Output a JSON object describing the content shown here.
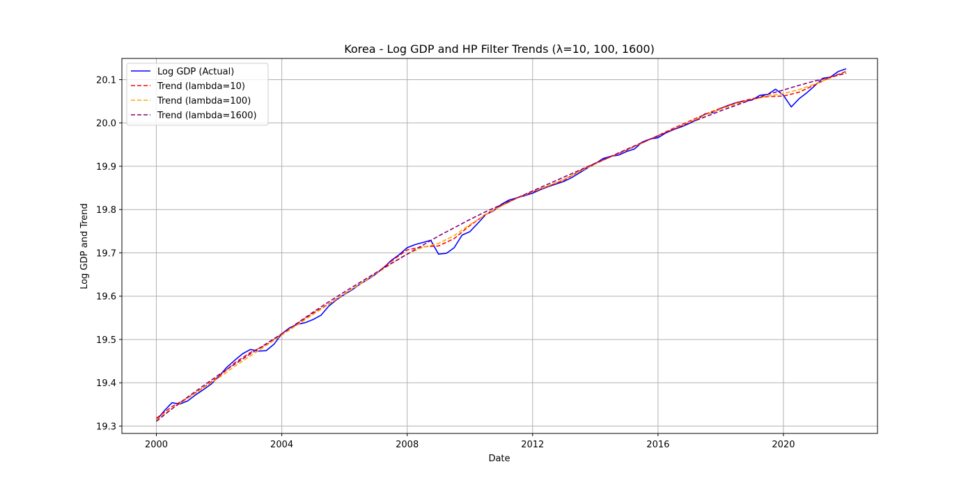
{
  "chart_data": {
    "type": "line",
    "title": "Korea - Log GDP and HP Filter Trends (λ=10, 100, 1600)",
    "xlabel": "Date",
    "ylabel": "Log GDP and Trend",
    "xlim": [
      1998.9,
      2023.0
    ],
    "ylim": [
      19.283,
      20.149
    ],
    "grid": true,
    "legend_position": "top-left",
    "x_ticks": [
      2000,
      2004,
      2008,
      2012,
      2016,
      2020
    ],
    "x_tick_labels": [
      "2000",
      "2004",
      "2008",
      "2012",
      "2016",
      "2020"
    ],
    "y_ticks": [
      19.3,
      19.4,
      19.5,
      19.6,
      19.7,
      19.8,
      19.9,
      20.0,
      20.1
    ],
    "y_tick_labels": [
      "19.3",
      "19.4",
      "19.5",
      "19.6",
      "19.7",
      "19.8",
      "19.9",
      "20.0",
      "20.1"
    ],
    "series": [
      {
        "name": "Log GDP (Actual)",
        "color": "#0000ff",
        "style": "solid",
        "x": [
          2000.0,
          2000.25,
          2000.5,
          2000.75,
          2001.0,
          2001.25,
          2001.5,
          2001.75,
          2002.0,
          2002.25,
          2002.5,
          2002.75,
          2003.0,
          2003.25,
          2003.5,
          2003.75,
          2004.0,
          2004.25,
          2004.5,
          2004.75,
          2005.0,
          2005.25,
          2005.5,
          2005.75,
          2006.0,
          2006.25,
          2006.5,
          2006.75,
          2007.0,
          2007.25,
          2007.5,
          2007.75,
          2008.0,
          2008.25,
          2008.5,
          2008.75,
          2009.0,
          2009.25,
          2009.5,
          2009.75,
          2010.0,
          2010.25,
          2010.5,
          2010.75,
          2011.0,
          2011.25,
          2011.5,
          2011.75,
          2012.0,
          2012.25,
          2012.5,
          2012.75,
          2013.0,
          2013.25,
          2013.5,
          2013.75,
          2014.0,
          2014.25,
          2014.5,
          2014.75,
          2015.0,
          2015.25,
          2015.5,
          2015.75,
          2016.0,
          2016.25,
          2016.5,
          2016.75,
          2017.0,
          2017.25,
          2017.5,
          2017.75,
          2018.0,
          2018.25,
          2018.5,
          2018.75,
          2019.0,
          2019.25,
          2019.5,
          2019.75,
          2020.0,
          2020.25,
          2020.5,
          2020.75,
          2021.0,
          2021.25,
          2021.5,
          2021.75,
          2022.0
        ],
        "values": [
          19.313,
          19.335,
          19.354,
          19.351,
          19.358,
          19.372,
          19.384,
          19.397,
          19.415,
          19.436,
          19.452,
          19.467,
          19.477,
          19.473,
          19.474,
          19.489,
          19.513,
          19.527,
          19.535,
          19.539,
          19.546,
          19.556,
          19.577,
          19.592,
          19.604,
          19.615,
          19.628,
          19.639,
          19.651,
          19.666,
          19.683,
          19.696,
          19.712,
          19.719,
          19.724,
          19.729,
          19.697,
          19.699,
          19.712,
          19.741,
          19.749,
          19.768,
          19.788,
          19.797,
          19.812,
          19.822,
          19.827,
          19.832,
          19.838,
          19.846,
          19.853,
          19.859,
          19.865,
          19.874,
          19.885,
          19.896,
          19.906,
          19.918,
          19.923,
          19.926,
          19.934,
          19.94,
          19.956,
          19.963,
          19.966,
          19.977,
          19.985,
          19.991,
          19.999,
          20.008,
          20.021,
          20.024,
          20.034,
          20.041,
          20.047,
          20.05,
          20.053,
          20.064,
          20.066,
          20.078,
          20.064,
          20.037,
          20.056,
          20.07,
          20.086,
          20.103,
          20.106,
          20.119,
          20.125
        ]
      },
      {
        "name": "Trend (lambda=10)",
        "color": "#ff0000",
        "style": "dashed",
        "x": [
          2000.0,
          2000.5,
          2001.0,
          2001.5,
          2002.0,
          2002.5,
          2003.0,
          2003.5,
          2004.0,
          2004.5,
          2005.0,
          2005.5,
          2006.0,
          2006.5,
          2007.0,
          2007.5,
          2008.0,
          2008.5,
          2009.0,
          2009.5,
          2010.0,
          2010.5,
          2011.0,
          2011.5,
          2012.0,
          2012.5,
          2013.0,
          2013.5,
          2014.0,
          2014.5,
          2015.0,
          2015.5,
          2016.0,
          2016.5,
          2017.0,
          2017.5,
          2018.0,
          2018.5,
          2019.0,
          2019.5,
          2020.0,
          2020.5,
          2021.0,
          2021.5,
          2022.0
        ],
        "values": [
          19.318,
          19.345,
          19.365,
          19.389,
          19.415,
          19.446,
          19.47,
          19.487,
          19.513,
          19.537,
          19.561,
          19.582,
          19.606,
          19.628,
          19.652,
          19.681,
          19.707,
          19.714,
          19.716,
          19.733,
          19.763,
          19.789,
          19.809,
          19.827,
          19.841,
          19.854,
          19.868,
          19.889,
          19.907,
          19.922,
          19.937,
          19.954,
          19.971,
          19.988,
          20.004,
          20.02,
          20.034,
          20.047,
          20.056,
          20.061,
          20.062,
          20.071,
          20.088,
          20.106,
          20.119
        ]
      },
      {
        "name": "Trend (lambda=100)",
        "color": "#ffa500",
        "style": "dashed",
        "x": [
          2000.0,
          2000.5,
          2001.0,
          2001.5,
          2002.0,
          2002.5,
          2003.0,
          2003.5,
          2004.0,
          2004.5,
          2005.0,
          2005.5,
          2006.0,
          2006.5,
          2007.0,
          2007.5,
          2008.0,
          2008.5,
          2009.0,
          2009.5,
          2010.0,
          2010.5,
          2011.0,
          2011.5,
          2012.0,
          2012.5,
          2013.0,
          2013.5,
          2014.0,
          2014.5,
          2015.0,
          2015.5,
          2016.0,
          2016.5,
          2017.0,
          2017.5,
          2018.0,
          2018.5,
          2019.0,
          2019.5,
          2020.0,
          2020.5,
          2021.0,
          2021.5,
          2022.0
        ],
        "values": [
          19.314,
          19.34,
          19.364,
          19.388,
          19.412,
          19.438,
          19.462,
          19.486,
          19.51,
          19.534,
          19.558,
          19.581,
          19.605,
          19.628,
          19.652,
          19.675,
          19.697,
          19.713,
          19.722,
          19.74,
          19.765,
          19.788,
          19.808,
          19.826,
          19.841,
          19.855,
          19.87,
          19.888,
          19.905,
          19.922,
          19.938,
          19.954,
          19.97,
          19.986,
          20.002,
          20.018,
          20.032,
          20.044,
          20.054,
          20.062,
          20.068,
          20.077,
          20.09,
          20.104,
          20.118
        ]
      },
      {
        "name": "Trend (lambda=1600)",
        "color": "#800080",
        "style": "dashed",
        "x": [
          2000.0,
          2000.5,
          2001.0,
          2001.5,
          2002.0,
          2002.5,
          2003.0,
          2003.5,
          2004.0,
          2004.5,
          2005.0,
          2005.5,
          2006.0,
          2006.5,
          2007.0,
          2007.5,
          2008.0,
          2008.5,
          2009.0,
          2009.5,
          2010.0,
          2010.5,
          2011.0,
          2011.5,
          2012.0,
          2012.5,
          2013.0,
          2013.5,
          2014.0,
          2014.5,
          2015.0,
          2015.5,
          2016.0,
          2016.5,
          2017.0,
          2017.5,
          2018.0,
          2018.5,
          2019.0,
          2019.5,
          2020.0,
          2020.5,
          2021.0,
          2021.5,
          2022.0
        ],
        "values": [
          19.311,
          19.34,
          19.367,
          19.393,
          19.419,
          19.443,
          19.467,
          19.49,
          19.513,
          19.538,
          19.563,
          19.587,
          19.61,
          19.632,
          19.654,
          19.676,
          19.697,
          19.718,
          19.739,
          19.758,
          19.777,
          19.795,
          19.811,
          19.827,
          19.843,
          19.859,
          19.875,
          19.891,
          19.907,
          19.923,
          19.939,
          19.955,
          19.97,
          19.985,
          20.0,
          20.014,
          20.028,
          20.041,
          20.054,
          20.066,
          20.076,
          20.087,
          20.097,
          20.106,
          20.115
        ]
      }
    ]
  }
}
